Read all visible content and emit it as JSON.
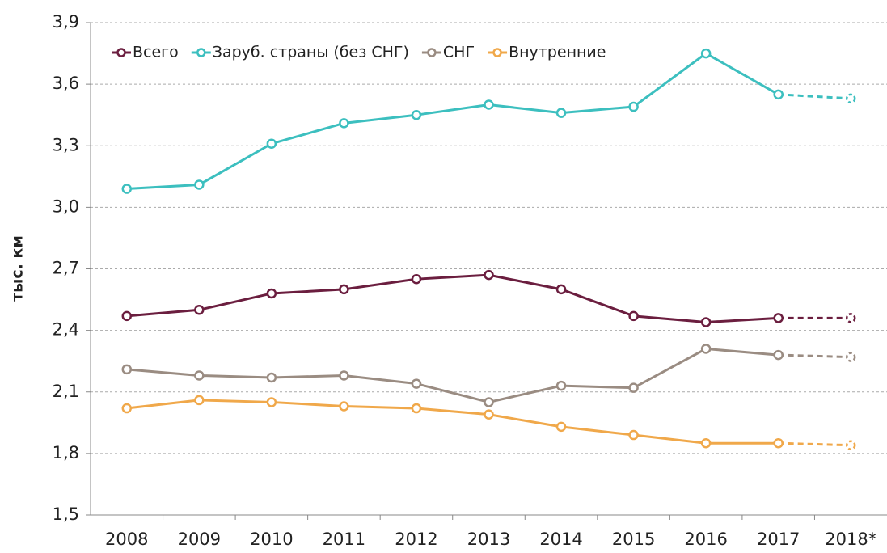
{
  "chart_data": {
    "type": "line",
    "y_label": "тыс. км",
    "categories": [
      "2008",
      "2009",
      "2010",
      "2011",
      "2012",
      "2013",
      "2014",
      "2015",
      "2016",
      "2017",
      "2018*"
    ],
    "series": [
      {
        "name": "Всего",
        "color": "#6b1e3f",
        "values": [
          2.47,
          2.5,
          2.58,
          2.6,
          2.65,
          2.67,
          2.6,
          2.47,
          2.44,
          2.46,
          2.46
        ]
      },
      {
        "name": "Заруб. страны (без СНГ)",
        "color": "#3cbfbf",
        "values": [
          3.09,
          3.11,
          3.31,
          3.41,
          3.45,
          3.5,
          3.46,
          3.49,
          3.75,
          3.55,
          3.53
        ]
      },
      {
        "name": "СНГ",
        "color": "#9a8c82",
        "values": [
          2.21,
          2.18,
          2.17,
          2.18,
          2.14,
          2.05,
          2.13,
          2.12,
          2.31,
          2.28,
          2.27
        ]
      },
      {
        "name": "Внутренние",
        "color": "#f0a84a",
        "values": [
          2.02,
          2.06,
          2.05,
          2.03,
          2.02,
          1.99,
          1.93,
          1.89,
          1.85,
          1.85,
          1.84
        ]
      }
    ],
    "ylim": [
      1.5,
      3.9
    ],
    "yticks": [
      {
        "value": 1.5,
        "label": "1,5"
      },
      {
        "value": 1.8,
        "label": "1,8"
      },
      {
        "value": 2.1,
        "label": "2,1"
      },
      {
        "value": 2.4,
        "label": "2,4"
      },
      {
        "value": 2.7,
        "label": "2,7"
      },
      {
        "value": 3.0,
        "label": "3,0"
      },
      {
        "value": 3.3,
        "label": "3,3"
      },
      {
        "value": 3.6,
        "label": "3,6"
      },
      {
        "value": 3.9,
        "label": "3,9"
      }
    ],
    "grid": true,
    "dashed_last_segment": true,
    "legend": "top-left"
  }
}
